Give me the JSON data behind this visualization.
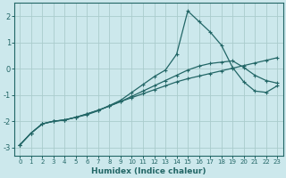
{
  "xlabel": "Humidex (Indice chaleur)",
  "xlim": [
    -0.5,
    23.5
  ],
  "ylim": [
    -3.3,
    2.5
  ],
  "xticks": [
    0,
    1,
    2,
    3,
    4,
    5,
    6,
    7,
    8,
    9,
    10,
    11,
    12,
    13,
    14,
    15,
    16,
    17,
    18,
    19,
    20,
    21,
    22,
    23
  ],
  "yticks": [
    -3,
    -2,
    -1,
    0,
    1,
    2
  ],
  "bg_color": "#cce8ec",
  "grid_color": "#aacccc",
  "line_color": "#226666",
  "lines": [
    {
      "x": [
        0,
        1,
        2,
        3,
        4,
        5,
        6,
        7,
        8,
        9,
        10,
        11,
        12,
        13,
        14,
        15,
        16,
        17,
        18,
        19,
        20,
        21,
        22,
        23
      ],
      "y": [
        -2.9,
        -2.45,
        -2.1,
        -2.0,
        -1.95,
        -1.85,
        -1.75,
        -1.6,
        -1.4,
        -1.2,
        -0.9,
        -0.6,
        -0.3,
        -0.05,
        0.55,
        2.2,
        1.8,
        1.4,
        0.9,
        0.05,
        -0.5,
        -0.85,
        -0.9,
        -0.65
      ]
    },
    {
      "x": [
        0,
        1,
        2,
        3,
        4,
        5,
        6,
        7,
        8,
        9,
        10,
        11,
        12,
        13,
        14,
        15,
        16,
        17,
        18,
        19,
        20,
        21,
        22,
        23
      ],
      "y": [
        -2.9,
        -2.45,
        -2.1,
        -2.0,
        -1.95,
        -1.85,
        -1.72,
        -1.58,
        -1.42,
        -1.25,
        -1.05,
        -0.85,
        -0.65,
        -0.45,
        -0.25,
        -0.05,
        0.1,
        0.2,
        0.25,
        0.3,
        0.05,
        -0.25,
        -0.45,
        -0.55
      ]
    },
    {
      "x": [
        0,
        1,
        2,
        3,
        4,
        5,
        6,
        7,
        8,
        9,
        10,
        11,
        12,
        13,
        14,
        15,
        16,
        17,
        18,
        19,
        20,
        21,
        22,
        23
      ],
      "y": [
        -2.9,
        -2.45,
        -2.1,
        -2.0,
        -1.95,
        -1.85,
        -1.72,
        -1.58,
        -1.42,
        -1.25,
        -1.1,
        -0.95,
        -0.8,
        -0.65,
        -0.5,
        -0.38,
        -0.28,
        -0.18,
        -0.08,
        0.02,
        0.12,
        0.22,
        0.32,
        0.42
      ]
    }
  ]
}
